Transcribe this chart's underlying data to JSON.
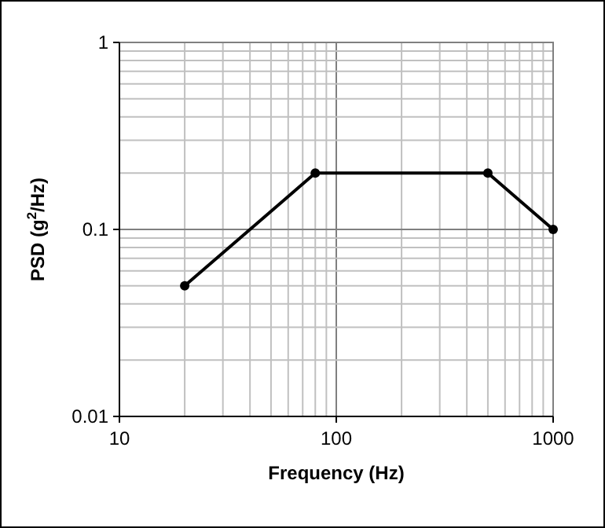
{
  "chart_data": {
    "type": "line",
    "xlabel": "Frequency (Hz)",
    "ylabel": "PSD (g$^{2}$/Hz)",
    "log": "xy",
    "grid": true,
    "marker": "circle",
    "line_style": "solid",
    "x": [
      20,
      80,
      500,
      1000
    ],
    "series": [
      {
        "color": "#000000",
        "values": [
          0.05,
          0.2,
          0.2,
          0.1
        ]
      }
    ],
    "xlim": [
      10,
      1000
    ],
    "ylim": [
      0.01,
      1
    ],
    "xticks": [
      10,
      {
        "value": 20,
        "label": null
      },
      {
        "value": 30,
        "label": null
      },
      {
        "value": 40,
        "label": null
      },
      {
        "value": 50,
        "label": null
      },
      {
        "value": 60,
        "label": null
      },
      {
        "value": 70,
        "label": null
      },
      {
        "value": 80,
        "label": null
      },
      {
        "value": 90,
        "label": null
      },
      100,
      {
        "value": 200,
        "label": null
      },
      {
        "value": 300,
        "label": null
      },
      {
        "value": 400,
        "label": null
      },
      {
        "value": 500,
        "label": null
      },
      {
        "value": 600,
        "label": null
      },
      {
        "value": 700,
        "label": null
      },
      {
        "value": 800,
        "label": null
      },
      {
        "value": 900,
        "label": null
      },
      1000
    ],
    "yticks": [
      0.01,
      {
        "value": 0.02,
        "label": null
      },
      {
        "value": 0.03,
        "label": null
      },
      {
        "value": 0.04,
        "label": null
      },
      {
        "value": 0.05,
        "label": null
      },
      {
        "value": 0.06,
        "label": null
      },
      {
        "value": 0.07,
        "label": null
      },
      {
        "value": 0.08,
        "label": null
      },
      {
        "value": 0.09,
        "label": null
      },
      0.1,
      {
        "value": 0.2,
        "label": null
      },
      {
        "value": 0.3,
        "label": null
      },
      {
        "value": 0.4,
        "label": null
      },
      {
        "value": 0.5,
        "label": null
      },
      {
        "value": 0.6,
        "label": null
      },
      {
        "value": 0.7,
        "label": null
      },
      {
        "value": 0.8,
        "label": null
      },
      {
        "value": 0.9,
        "label": null
      },
      1
    ]
  }
}
